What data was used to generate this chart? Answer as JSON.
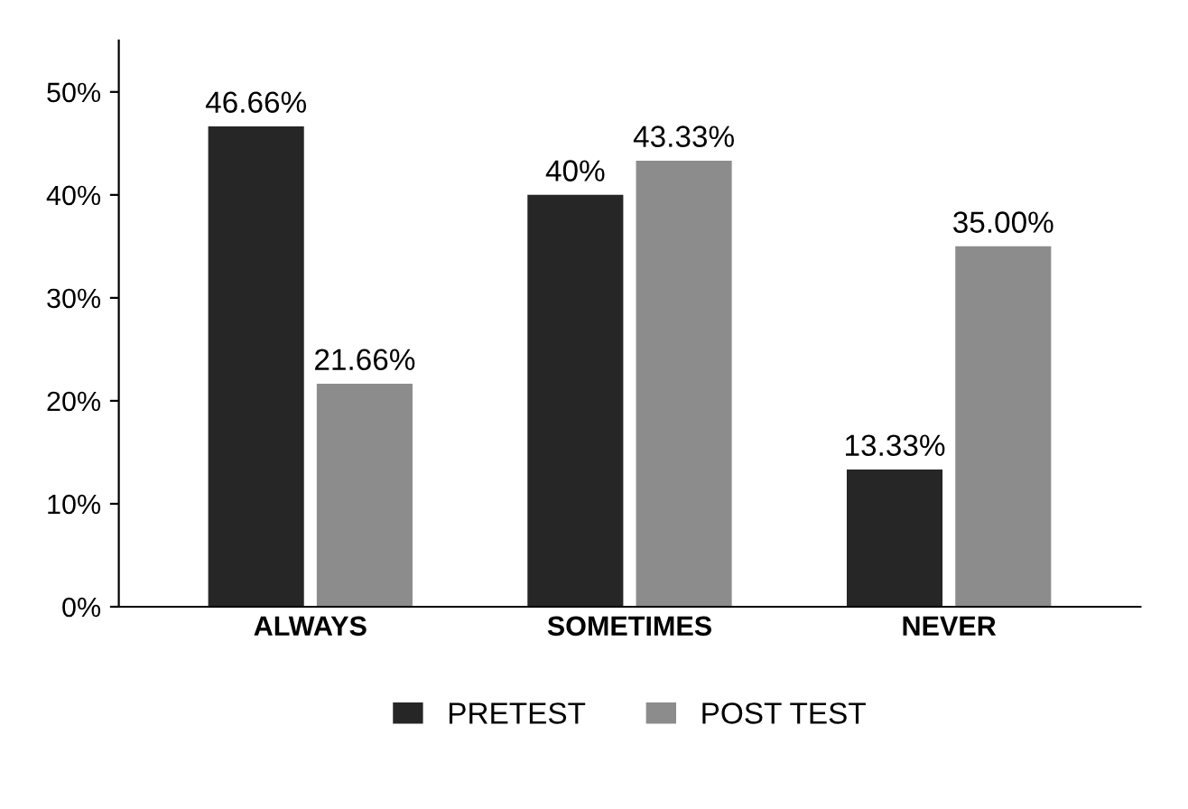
{
  "chart_data": {
    "type": "bar",
    "categories": [
      "ALWAYS",
      "SOMETIMES",
      "NEVER"
    ],
    "series": [
      {
        "name": "PRETEST",
        "color": "#262626",
        "values": [
          46.66,
          40,
          13.33
        ],
        "value_labels": [
          "46.66%",
          "40%",
          "13.33%"
        ]
      },
      {
        "name": "POST TEST",
        "color": "#8c8c8c",
        "values": [
          21.66,
          43.33,
          35.0
        ],
        "value_labels": [
          "21.66%",
          "43.33%",
          "35.00%"
        ]
      }
    ],
    "ylim": [
      0,
      55
    ],
    "yticks": [
      {
        "value": 0,
        "label": "0%"
      },
      {
        "value": 10,
        "label": "10%"
      },
      {
        "value": 20,
        "label": "20%"
      },
      {
        "value": 30,
        "label": "30%"
      },
      {
        "value": 40,
        "label": "40%"
      },
      {
        "value": 50,
        "label": "50%"
      }
    ],
    "grid": false,
    "legend": "bottom"
  }
}
